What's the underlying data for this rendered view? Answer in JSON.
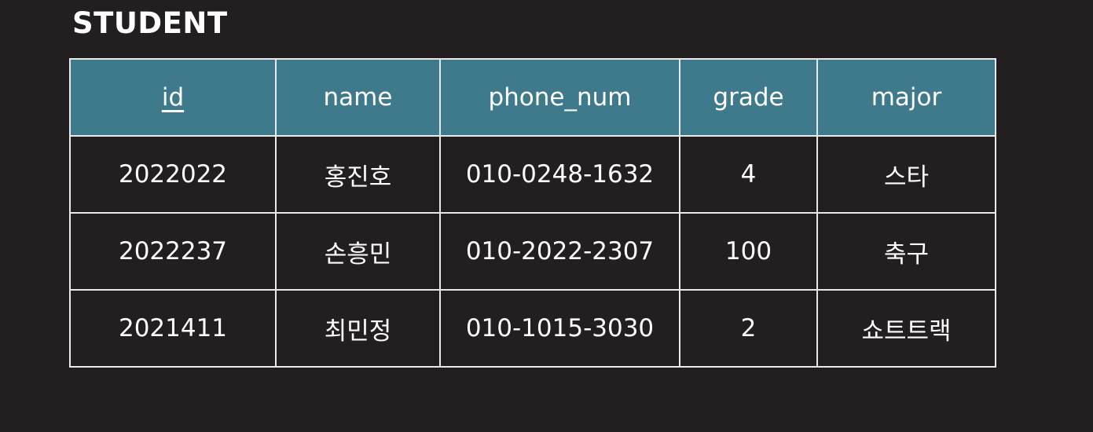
{
  "table": {
    "title": "STUDENT",
    "columns": [
      {
        "key": "id",
        "label": "id",
        "primary_key": true
      },
      {
        "key": "name",
        "label": "name"
      },
      {
        "key": "phone_num",
        "label": "phone_num"
      },
      {
        "key": "grade",
        "label": "grade"
      },
      {
        "key": "major",
        "label": "major"
      }
    ],
    "rows": [
      {
        "id": "2022022",
        "name": "홍진호",
        "phone_num": "010-0248-1632",
        "grade": "4",
        "major": "스타"
      },
      {
        "id": "2022237",
        "name": "손흥민",
        "phone_num": "010-2022-2307",
        "grade": "100",
        "major": "축구"
      },
      {
        "id": "2021411",
        "name": "최민정",
        "phone_num": "010-1015-3030",
        "grade": "2",
        "major": "쇼트트랙"
      }
    ]
  },
  "colors": {
    "background": "#231f20",
    "header_fill": "#3e7a8c",
    "border": "#e9e9e9",
    "text": "#ffffff",
    "highlight_text": "#f2c58f"
  }
}
